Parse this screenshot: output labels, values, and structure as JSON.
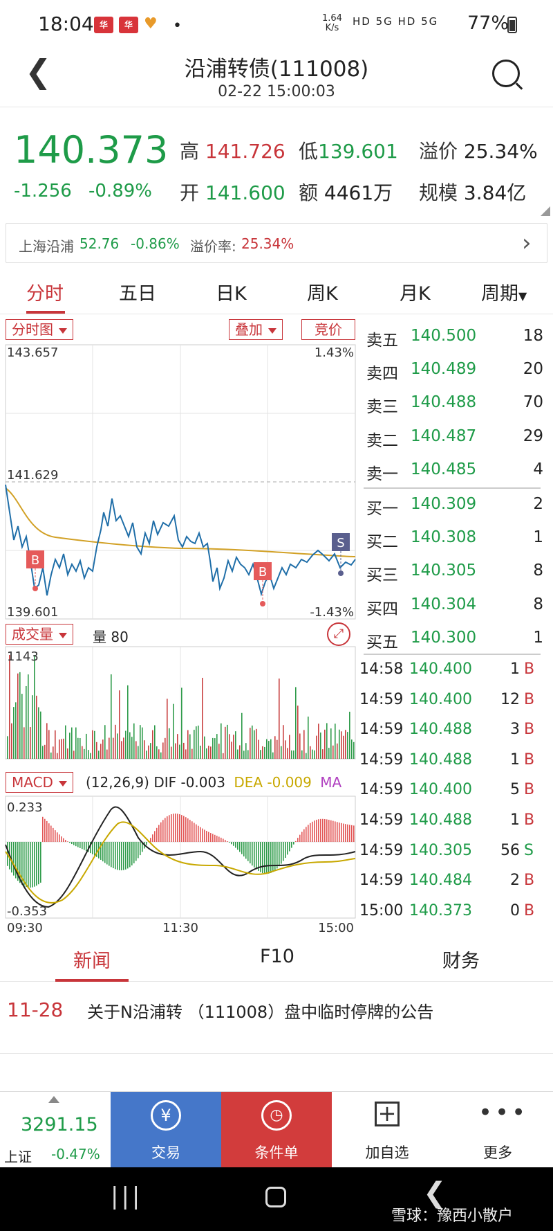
{
  "status": {
    "time": "18:04",
    "speed_top": "1.64",
    "speed_bottom": "K/s",
    "network": "HD 5G HD 5G",
    "battery": "77%",
    "notif_a": "华",
    "notif_b": "华"
  },
  "header": {
    "title": "沿浦转债(111008)",
    "subtitle": "02-22 15:00:03"
  },
  "quote": {
    "price": "140.373",
    "change": "-1.256",
    "change_pct": "-0.89%",
    "high_label": "高",
    "high": "141.726",
    "low_label": "低",
    "low": "139.601",
    "premium_label": "溢价",
    "premium": "25.34%",
    "open_label": "开",
    "open": "141.600",
    "amount_label": "额",
    "amount": "4461万",
    "scale_label": "规模",
    "scale": "3.84亿"
  },
  "underlying": {
    "name": "上海沿浦",
    "price": "52.76",
    "change_pct": "-0.86%",
    "premium_label": "溢价率:",
    "premium": "25.34%"
  },
  "tabs": [
    "分时",
    "五日",
    "日K",
    "周K",
    "月K",
    "周期"
  ],
  "chart": {
    "type_select": "分时图",
    "overlay_select": "叠加",
    "auction_btn": "竞价",
    "y_high": "143.657",
    "y_mid": "141.629",
    "y_low": "139.601",
    "pct_high": "1.43%",
    "pct_low": "-1.43%",
    "marker_b": "B",
    "marker_s": "S",
    "vol_select": "成交量",
    "vol_label": "量 80",
    "vol_max": "1143",
    "macd_select": "MACD",
    "macd_params": "(12,26,9)",
    "dif_label": "DIF",
    "dif": "-0.003",
    "dea_label": "DEA",
    "dea": "-0.009",
    "ma_label": "MA",
    "macd_high": "0.233",
    "macd_low": "-0.353",
    "times": [
      "09:30",
      "11:30",
      "15:00"
    ]
  },
  "orderbook": {
    "asks": [
      {
        "name": "卖五",
        "price": "140.500",
        "qty": "18"
      },
      {
        "name": "卖四",
        "price": "140.489",
        "qty": "20"
      },
      {
        "name": "卖三",
        "price": "140.488",
        "qty": "70"
      },
      {
        "name": "卖二",
        "price": "140.487",
        "qty": "29"
      },
      {
        "name": "卖一",
        "price": "140.485",
        "qty": "4"
      }
    ],
    "bids": [
      {
        "name": "买一",
        "price": "140.309",
        "qty": "2"
      },
      {
        "name": "买二",
        "price": "140.308",
        "qty": "1"
      },
      {
        "name": "买三",
        "price": "140.305",
        "qty": "8"
      },
      {
        "name": "买四",
        "price": "140.304",
        "qty": "8"
      },
      {
        "name": "买五",
        "price": "140.300",
        "qty": "1"
      }
    ]
  },
  "trades": [
    {
      "time": "14:58",
      "price": "140.400",
      "qty": "1",
      "side": "B"
    },
    {
      "time": "14:59",
      "price": "140.400",
      "qty": "12",
      "side": "B"
    },
    {
      "time": "14:59",
      "price": "140.488",
      "qty": "3",
      "side": "B"
    },
    {
      "time": "14:59",
      "price": "140.488",
      "qty": "1",
      "side": "B"
    },
    {
      "time": "14:59",
      "price": "140.400",
      "qty": "5",
      "side": "B"
    },
    {
      "time": "14:59",
      "price": "140.488",
      "qty": "1",
      "side": "B"
    },
    {
      "time": "14:59",
      "price": "140.305",
      "qty": "56",
      "side": "S"
    },
    {
      "time": "14:59",
      "price": "140.484",
      "qty": "2",
      "side": "B"
    },
    {
      "time": "15:00",
      "price": "140.373",
      "qty": "0",
      "side": "B"
    }
  ],
  "news_tabs": [
    "新闻",
    "F10",
    "财务"
  ],
  "news": [
    {
      "date": "11-28",
      "title": "关于N沿浦转 （111008）盘中临时停牌的公告"
    }
  ],
  "bottom": {
    "index_value": "3291.15",
    "index_name": "上证",
    "index_change": "-0.47%",
    "trade": "交易",
    "condition": "条件单",
    "add": "加自选",
    "more": "更多"
  },
  "nav": {
    "watermark": "雪球：豫西小散户"
  }
}
